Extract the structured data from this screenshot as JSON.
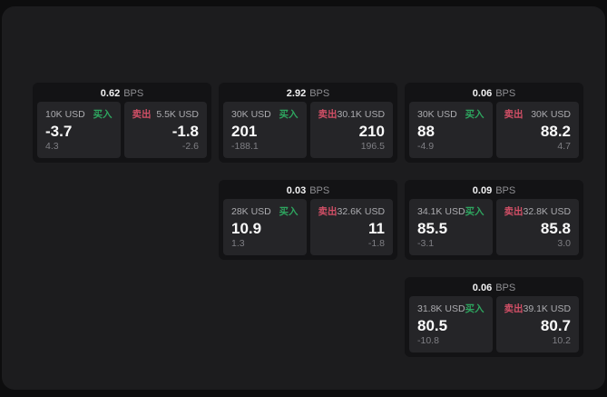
{
  "labels": {
    "bps": "BPS",
    "buy": "买入",
    "sell": "卖出"
  },
  "colors": {
    "buy_tag": "#2ea55f",
    "sell_tag": "#d14f66",
    "container_bg": "#1c1c1e",
    "card_bg": "#131315",
    "panel_bg": "#252528"
  },
  "cards": [
    {
      "bps": "0.62",
      "row": 1,
      "col": 1,
      "buy": {
        "amount": "10K USD",
        "price": "-3.7",
        "delta": "4.3"
      },
      "sell": {
        "amount": "5.5K USD",
        "price": "-1.8",
        "delta": "-2.6"
      }
    },
    {
      "bps": "2.92",
      "row": 1,
      "col": 2,
      "buy": {
        "amount": "30K USD",
        "price": "201",
        "delta": "-188.1"
      },
      "sell": {
        "amount": "30.1K USD",
        "price": "210",
        "delta": "196.5"
      }
    },
    {
      "bps": "0.06",
      "row": 1,
      "col": 3,
      "buy": {
        "amount": "30K USD",
        "price": "88",
        "delta": "-4.9"
      },
      "sell": {
        "amount": "30K USD",
        "price": "88.2",
        "delta": "4.7"
      }
    },
    {
      "bps": "0.03",
      "row": 2,
      "col": 2,
      "buy": {
        "amount": "28K USD",
        "price": "10.9",
        "delta": "1.3"
      },
      "sell": {
        "amount": "32.6K USD",
        "price": "11",
        "delta": "-1.8"
      }
    },
    {
      "bps": "0.09",
      "row": 2,
      "col": 3,
      "buy": {
        "amount": "34.1K USD",
        "price": "85.5",
        "delta": "-3.1"
      },
      "sell": {
        "amount": "32.8K USD",
        "price": "85.8",
        "delta": "3.0"
      }
    },
    {
      "bps": "0.06",
      "row": 3,
      "col": 3,
      "buy": {
        "amount": "31.8K USD",
        "price": "80.5",
        "delta": "-10.8"
      },
      "sell": {
        "amount": "39.1K USD",
        "price": "80.7",
        "delta": "10.2"
      }
    }
  ]
}
